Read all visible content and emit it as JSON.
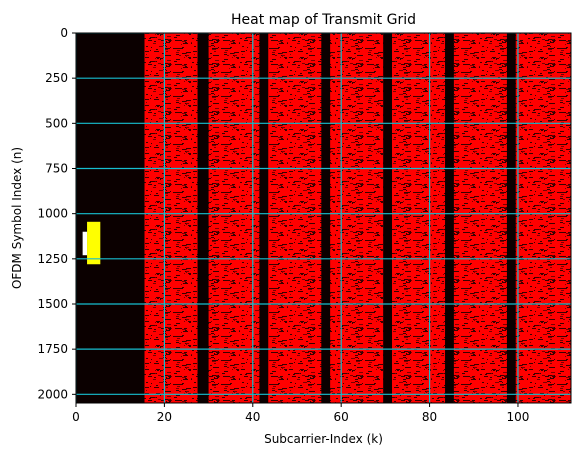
{
  "chart_data": {
    "type": "heatmap",
    "title": "Heat map of Transmit Grid",
    "xlabel": "Subcarrier-Index (k)",
    "ylabel": "OFDM Symbol Index (n)",
    "xlim": [
      0,
      112
    ],
    "ylim": [
      2048,
      0
    ],
    "y_inverted": true,
    "x_ticks": [
      0,
      20,
      40,
      60,
      80,
      100
    ],
    "y_ticks": [
      0,
      250,
      500,
      750,
      1000,
      1250,
      1500,
      1750,
      2000
    ],
    "grid": true,
    "grid_color": "#17becf",
    "colormap": [
      "#0b0000",
      "#ff0000",
      "#ffff00",
      "#ffffff"
    ],
    "background_color": "#0b0000",
    "data_bands": [
      {
        "x_start": 15.5,
        "x_end": 27.5,
        "level": "data",
        "color": "#ff0000"
      },
      {
        "x_start": 30,
        "x_end": 41.5,
        "level": "data",
        "color": "#ff0000"
      },
      {
        "x_start": 43.5,
        "x_end": 55.5,
        "level": "data",
        "color": "#ff0000"
      },
      {
        "x_start": 57.5,
        "x_end": 69.5,
        "level": "data",
        "color": "#ff0000"
      },
      {
        "x_start": 71.5,
        "x_end": 83.5,
        "level": "data",
        "color": "#ff0000"
      },
      {
        "x_start": 85.5,
        "x_end": 97.5,
        "level": "data",
        "color": "#ff0000"
      },
      {
        "x_start": 99.5,
        "x_end": 112,
        "level": "data",
        "color": "#ff0000"
      }
    ],
    "highlight_blocks": [
      {
        "x_start": 2.5,
        "x_end": 5.5,
        "y_start": 1045,
        "y_end": 1280,
        "color": "#ffff00"
      },
      {
        "x_start": 1.5,
        "x_end": 2.5,
        "y_start": 1100,
        "y_end": 1230,
        "color": "#ffffff"
      }
    ]
  }
}
